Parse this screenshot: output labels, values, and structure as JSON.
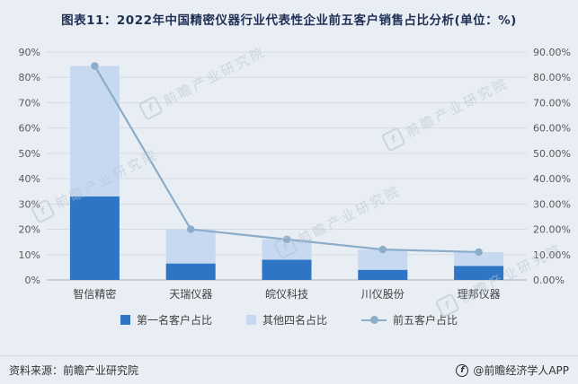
{
  "page": {
    "title": "图表11：2022年中国精密仪器行业代表性企业前五客户销售占比分析(单位：%)",
    "source_label": "资料来源：前瞻产业研究院",
    "credit_label": "@前瞻经济学人APP",
    "watermark": "前瞻产业研究院",
    "watermark_logo_glyph": "f",
    "credit_logo_glyph": "f"
  },
  "colors": {
    "background": "#e9edf4",
    "title_text": "#1f3054",
    "axis_text": "#595959",
    "gridline": "#d7dce3",
    "axis_line": "#a9b0ba",
    "bar_first": "#2e75c6",
    "bar_other": "#c7d9f0",
    "line": "#8badca"
  },
  "chart_data": {
    "type": "bar",
    "subtype": "stacked-bars-with-line",
    "title": "2022年中国精密仪器行业代表性企业前五客户销售占比分析",
    "unit": "%",
    "categories": [
      "智信精密",
      "天瑞仪器",
      "皖仪科技",
      "川仪股份",
      "理邦仪器"
    ],
    "series": [
      {
        "name": "第一名客户占比",
        "type": "bar",
        "stack": true,
        "color": "#2e75c6",
        "values": [
          33,
          6.5,
          8,
          4,
          5.5
        ]
      },
      {
        "name": "其他四名占比",
        "type": "bar",
        "stack": true,
        "color": "#c7d9f0",
        "values": [
          51.5,
          13.5,
          8,
          8,
          5.5
        ]
      },
      {
        "name": "前五客户占比",
        "type": "line",
        "color": "#8badca",
        "values": [
          84.5,
          20,
          16,
          12,
          11
        ]
      }
    ],
    "ylim": [
      0,
      90
    ],
    "ytick_step": 10,
    "left_axis_tick_labels": [
      "0%",
      "10%",
      "20%",
      "30%",
      "40%",
      "50%",
      "60%",
      "70%",
      "80%",
      "90%"
    ],
    "right_axis_tick_labels": [
      "0.00%",
      "10.00%",
      "20.00%",
      "30.00%",
      "40.00%",
      "50.00%",
      "60.00%",
      "70.00%",
      "80.00%",
      "90.00%"
    ],
    "grid": true,
    "legend_position": "bottom"
  }
}
